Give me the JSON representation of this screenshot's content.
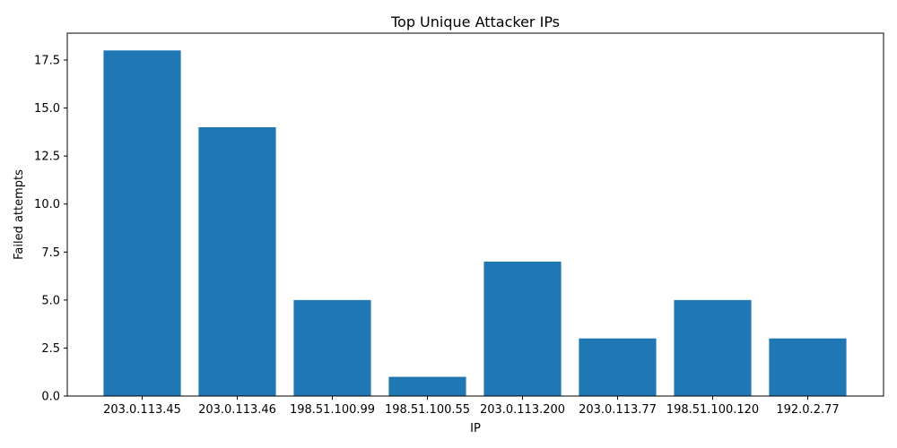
{
  "chart_data": {
    "type": "bar",
    "title": "Top Unique Attacker IPs",
    "xlabel": "IP",
    "ylabel": "Failed attempts",
    "categories": [
      "203.0.113.45",
      "203.0.113.46",
      "198.51.100.99",
      "198.51.100.55",
      "203.0.113.200",
      "203.0.113.77",
      "198.51.100.120",
      "192.0.2.77"
    ],
    "values": [
      18,
      14,
      5,
      1,
      7,
      3,
      5,
      3
    ],
    "ylim": [
      0,
      18.9
    ],
    "yticks": [
      0,
      2.5,
      5,
      7.5,
      10,
      12.5,
      15,
      17.5
    ],
    "ytick_labels": [
      "0.0",
      "2.5",
      "5.0",
      "7.5",
      "10.0",
      "12.5",
      "15.0",
      "17.5"
    ],
    "bar_color": "#1f77b4",
    "grid": false,
    "legend": "none"
  }
}
